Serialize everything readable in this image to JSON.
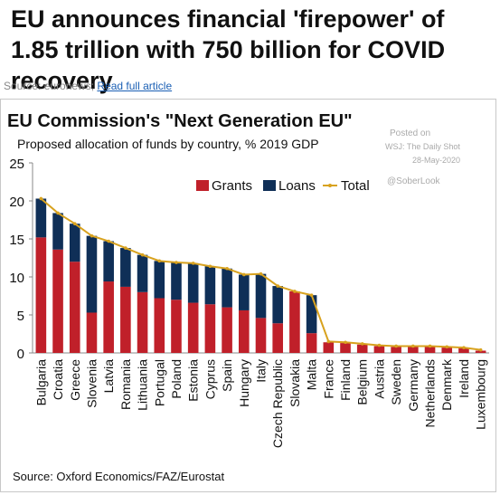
{
  "article": {
    "headline": "EU announces financial 'firepower' of 1.85 trillion with 750 billion for COVID recovery",
    "source_prefix": "Source: euronews;",
    "link_label": "Read full article"
  },
  "chart_data": {
    "type": "bar",
    "title": "EU Commission's \"Next Generation EU\"",
    "subtitle": "Proposed allocation of funds by country, % 2019 GDP",
    "posted_on": "Posted on",
    "posted_by": "WSJ: The Daily Shot",
    "posted_date": "28-May-2020",
    "handle": "@SoberLook",
    "source": "Source: Oxford Economics/FAZ/Eurostat",
    "xlabel": "",
    "ylabel": "",
    "ylim": [
      0,
      25
    ],
    "yticks": [
      0,
      5,
      10,
      15,
      20,
      25
    ],
    "grid": false,
    "legend_position": "top-right",
    "categories": [
      "Bulgaria",
      "Croatia",
      "Greece",
      "Slovenia",
      "Latvia",
      "Romania",
      "Lithuania",
      "Portugal",
      "Poland",
      "Estonia",
      "Cyprus",
      "Spain",
      "Hungary",
      "Italy",
      "Czech Republic",
      "Slovakia",
      "Malta",
      "France",
      "Finland",
      "Belgium",
      "Austria",
      "Sweden",
      "Germany",
      "Netherlands",
      "Denmark",
      "Ireland",
      "Luxembourg"
    ],
    "series": [
      {
        "name": "Grants",
        "color": "#c0202a",
        "values": [
          15.2,
          13.6,
          12.0,
          5.3,
          9.4,
          8.7,
          8.0,
          7.2,
          7.0,
          6.6,
          6.4,
          6.0,
          5.6,
          4.6,
          3.9,
          8.1,
          2.6,
          1.4,
          1.3,
          1.1,
          0.9,
          0.8,
          0.8,
          0.8,
          0.7,
          0.6,
          0.3
        ]
      },
      {
        "name": "Loans",
        "color": "#0f2f57",
        "values": [
          5.1,
          4.8,
          5.0,
          10.1,
          5.3,
          5.1,
          4.9,
          4.9,
          4.9,
          5.2,
          5.0,
          5.1,
          4.7,
          5.8,
          4.9,
          0.0,
          5.0,
          0,
          0,
          0,
          0,
          0,
          0,
          0,
          0,
          0,
          0
        ]
      },
      {
        "name": "Total",
        "color": "#d8a21f",
        "type": "line",
        "values": [
          20.3,
          18.4,
          17.0,
          15.4,
          14.7,
          13.8,
          12.9,
          12.1,
          11.9,
          11.8,
          11.4,
          11.1,
          10.3,
          10.4,
          8.8,
          8.1,
          7.6,
          1.5,
          1.4,
          1.2,
          1.0,
          0.9,
          0.9,
          0.9,
          0.8,
          0.7,
          0.4
        ]
      }
    ]
  }
}
